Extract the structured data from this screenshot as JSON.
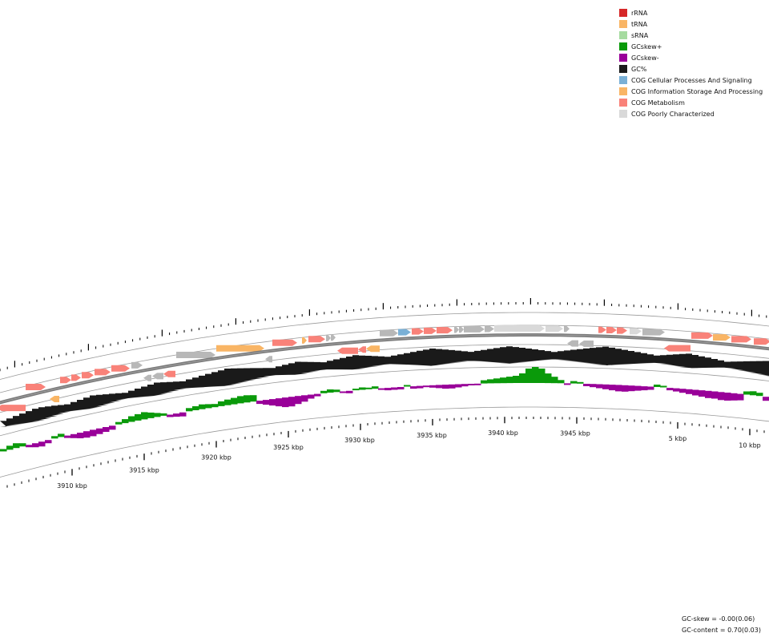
{
  "legend": {
    "items": [
      {
        "label": "rRNA",
        "color": "#d62728"
      },
      {
        "label": "tRNA",
        "color": "#f9b565"
      },
      {
        "label": "sRNA",
        "color": "#a6dba0"
      },
      {
        "label": "GCskew+",
        "color": "#0a9a0a"
      },
      {
        "label": "GCskew-",
        "color": "#990099"
      },
      {
        "label": "GC%",
        "color": "#1a1a1a"
      },
      {
        "label": "COG Cellular Processes And Signaling",
        "color": "#7ab0d6"
      },
      {
        "label": "COG Information Storage And Processing",
        "color": "#f9b565"
      },
      {
        "label": "COG Metabolism",
        "color": "#f98279"
      },
      {
        "label": "COG Poorly Characterized",
        "color": "#d9d9d9"
      }
    ]
  },
  "stats": {
    "gc_skew": "GC-skew = -0.00(0.06)",
    "gc_content": "GC-content = 0.70(0.03)"
  },
  "scale": {
    "labels": [
      "3910 kbp",
      "3915 kbp",
      "3920 kbp",
      "3925 kbp",
      "3930 kbp",
      "3935 kbp",
      "3940 kbp",
      "3945 kbp",
      "5 kbp",
      "10 kbp"
    ]
  },
  "colors": {
    "metabolism": "#f98279",
    "information": "#f9b565",
    "cellular": "#7ab0d6",
    "poorly": "#d9d9d9",
    "unassigned": "#b8b8b8",
    "backbone": "#7a7a7a",
    "gc": "#1a1a1a",
    "skew_pos": "#0a9a0a",
    "skew_neg": "#990099",
    "track_line": "#9a9a9a"
  }
}
